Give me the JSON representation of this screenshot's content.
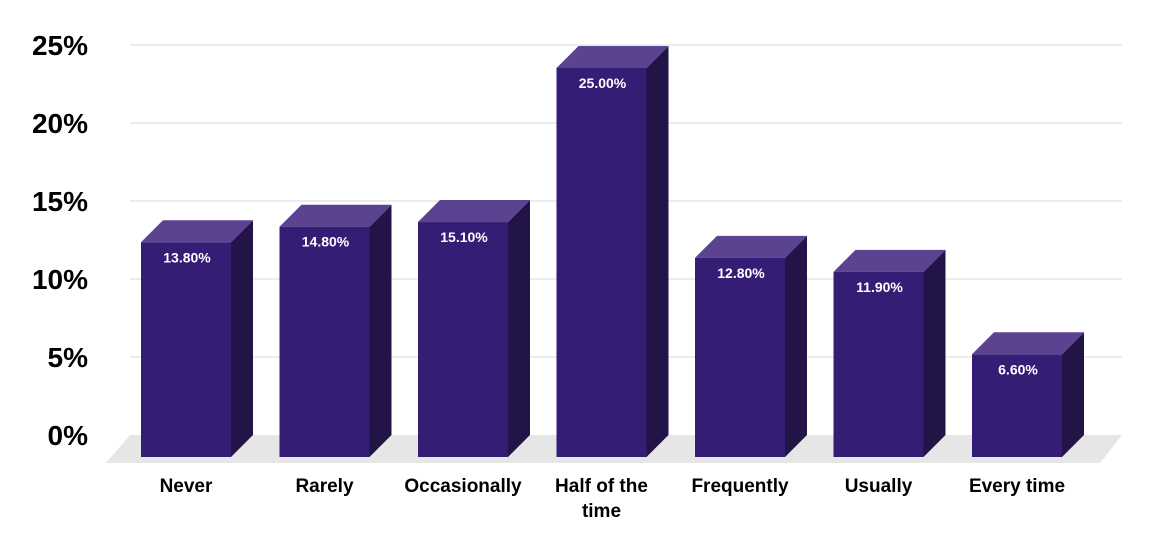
{
  "chart_data": {
    "type": "bar",
    "categories": [
      "Never",
      "Rarely",
      "Occasionally",
      "Half of the time",
      "Frequently",
      "Usually",
      "Every time"
    ],
    "category_lines": [
      [
        "Never"
      ],
      [
        "Rarely"
      ],
      [
        "Occasionally"
      ],
      [
        "Half of the",
        "time"
      ],
      [
        "Frequently"
      ],
      [
        "Usually"
      ],
      [
        "Every time"
      ]
    ],
    "values": [
      13.8,
      14.8,
      15.1,
      25.0,
      12.8,
      11.9,
      6.6
    ],
    "data_labels": [
      "13.80%",
      "14.80%",
      "15.10%",
      "25.00%",
      "12.80%",
      "11.90%",
      "6.60%"
    ],
    "y_ticks": [
      0,
      5,
      10,
      15,
      20,
      25
    ],
    "y_tick_labels": [
      "0%",
      "5%",
      "10%",
      "15%",
      "20%",
      "25%"
    ],
    "ylim": [
      0,
      25
    ],
    "grid": true,
    "style": "3d-bar",
    "title": "",
    "xlabel": "",
    "ylabel": "",
    "colors": {
      "bar_front": "#351c75",
      "bar_top": "#5b4391",
      "bar_side": "#231448",
      "floor": "#e6e6e6",
      "grid": "#d9d9d9",
      "label_text": "#ffffff",
      "axis_text": "#000000"
    }
  }
}
